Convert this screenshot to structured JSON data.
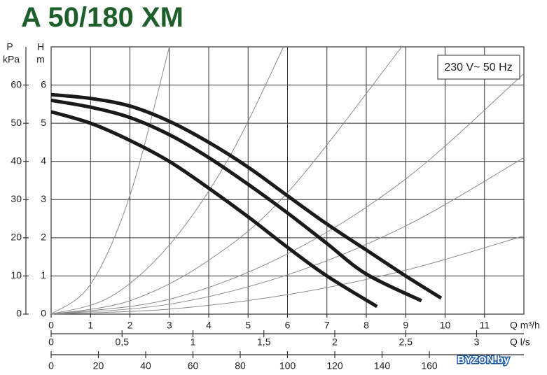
{
  "chart_data": {
    "type": "line",
    "title": "A 50/180 XM",
    "annotation": "230 V~ 50 Hz",
    "watermark": "BYZON.by",
    "xlabel": "Q m³/h",
    "xlim": [
      0,
      12
    ],
    "xticks": [
      0,
      1,
      2,
      3,
      4,
      5,
      6,
      7,
      8,
      9,
      10,
      11
    ],
    "x2label": "Q l/s",
    "x2lim": [
      0,
      3.3333
    ],
    "x2ticks": [
      0,
      {
        "value": 0.5,
        "label": "0,5"
      },
      1,
      {
        "value": 1.5,
        "label": "1,5"
      },
      2,
      {
        "value": 2.5,
        "label": "2,5"
      },
      3
    ],
    "x3lim": [
      0,
      200
    ],
    "x3ticks": [
      0,
      20,
      40,
      60,
      80,
      100,
      120,
      140,
      160
    ],
    "ylabel": "H",
    "yunit": "m",
    "ylim": [
      0,
      7
    ],
    "yticks": [
      0,
      1,
      2,
      3,
      4,
      5,
      6
    ],
    "y2label": "P",
    "y2unit": "kPa",
    "y2lim": [
      0,
      70
    ],
    "y2ticks": [
      0,
      10,
      20,
      30,
      40,
      50,
      60
    ],
    "grid": true,
    "series": [
      {
        "color": "#1a1a1a",
        "x": [
          0,
          1,
          2,
          3,
          4,
          5,
          6,
          7,
          8,
          9,
          9.9
        ],
        "values": [
          5.75,
          5.65,
          5.45,
          5.05,
          4.5,
          3.85,
          3.1,
          2.36,
          1.68,
          1.0,
          0.42
        ]
      },
      {
        "color": "#1a1a1a",
        "x": [
          0,
          1,
          2,
          3,
          4,
          5,
          6,
          7,
          8,
          9.4
        ],
        "values": [
          5.6,
          5.42,
          5.15,
          4.7,
          4.1,
          3.4,
          2.65,
          1.85,
          1.05,
          0.35
        ]
      },
      {
        "color": "#1a1a1a",
        "x": [
          0,
          1,
          2,
          3,
          4,
          5,
          6,
          7,
          8.27
        ],
        "values": [
          5.3,
          5.0,
          4.55,
          4.0,
          3.3,
          2.55,
          1.75,
          1.0,
          0.2
        ]
      }
    ],
    "system_curves": [
      {
        "color": "#8a8a8a",
        "x": [
          0,
          1,
          2,
          3
        ],
        "values": [
          0,
          0.78,
          3.11,
          7
        ]
      },
      {
        "color": "#8a8a8a",
        "x": [
          0,
          1.5,
          3,
          4.5,
          5.9
        ],
        "values": [
          0,
          0.45,
          1.81,
          4.07,
          7
        ]
      },
      {
        "color": "#8a8a8a",
        "x": [
          0,
          2,
          4,
          6,
          8.9
        ],
        "values": [
          0,
          0.35,
          1.41,
          3.18,
          7
        ]
      },
      {
        "color": "#8a8a8a",
        "x": [
          0,
          3,
          6,
          9,
          12
        ],
        "values": [
          0,
          0.39,
          1.58,
          3.54,
          6.3
        ]
      },
      {
        "color": "#8a8a8a",
        "x": [
          0,
          3,
          6,
          9,
          12
        ],
        "values": [
          0,
          0.26,
          1.03,
          2.31,
          4.1
        ]
      },
      {
        "color": "#8a8a8a",
        "x": [
          0,
          3,
          6,
          9,
          12
        ],
        "values": [
          0,
          0.13,
          0.51,
          1.15,
          2.05
        ]
      }
    ]
  }
}
